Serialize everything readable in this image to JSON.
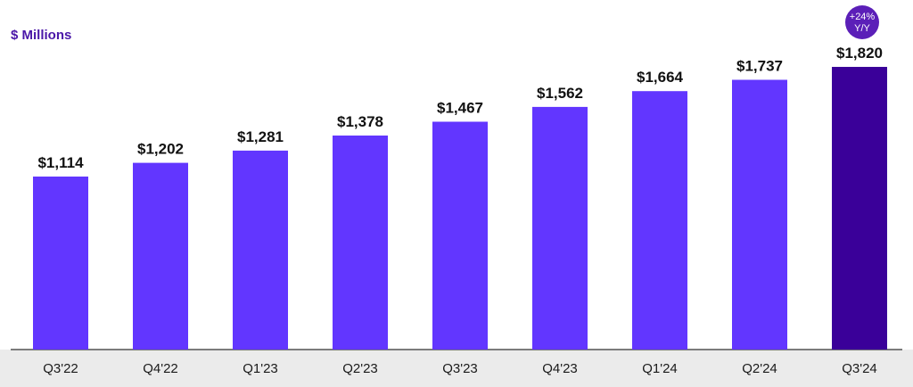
{
  "chart_data": {
    "type": "bar",
    "ylabel": "$ Millions",
    "categories": [
      "Q3'22",
      "Q4'22",
      "Q1'23",
      "Q2'23",
      "Q3'23",
      "Q4'23",
      "Q1'24",
      "Q2'24",
      "Q3'24"
    ],
    "values": [
      1114,
      1202,
      1281,
      1378,
      1467,
      1562,
      1664,
      1737,
      1820
    ],
    "value_labels": [
      "$1,114",
      "$1,202",
      "$1,281",
      "$1,378",
      "$1,467",
      "$1,562",
      "$1,664",
      "$1,737",
      "$1,820"
    ],
    "ylim": [
      0,
      1820
    ],
    "grid": false,
    "highlight_index": 8,
    "annotation": {
      "line1": "+24%",
      "line2": "Y/Y"
    },
    "colors": {
      "bar": "#6236ff",
      "bar_highlight": "#3a0099",
      "badge": "#5b1fb8",
      "axis_band": "#ebebeb",
      "axis_line": "#333333",
      "ylabel": "#4a17a8"
    }
  }
}
